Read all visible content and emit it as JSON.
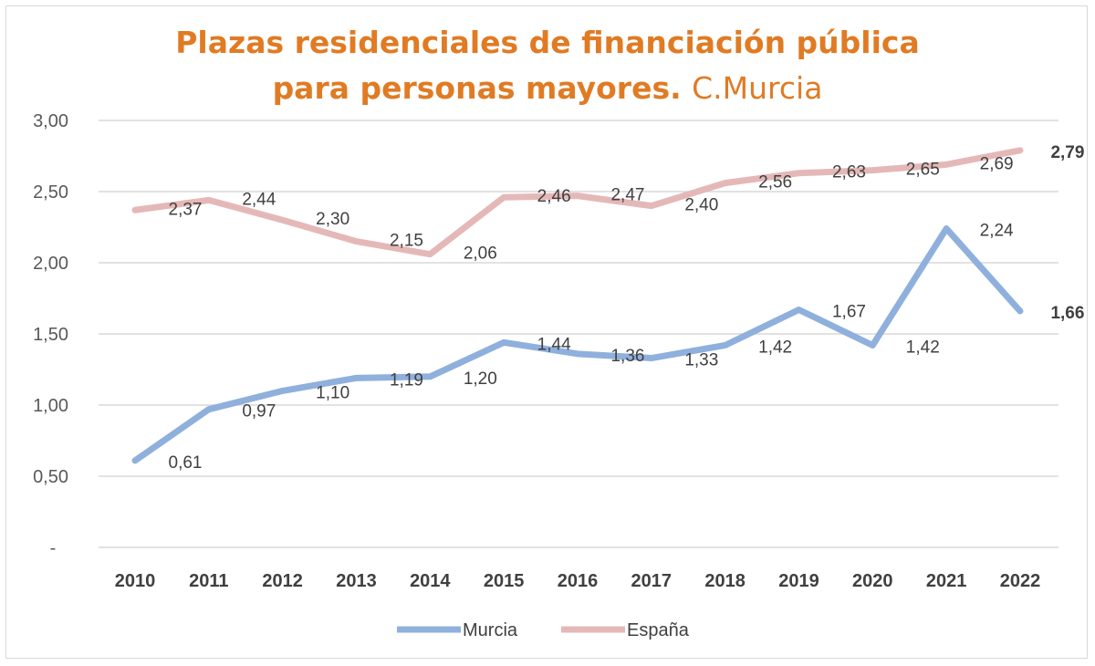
{
  "chart_data": {
    "type": "line",
    "title_line1": "Plazas residenciales de financiación pública",
    "title_line2": "para personas mayores.",
    "subtitle": "C.Murcia",
    "xlabel": "",
    "ylabel": "",
    "x": [
      "2010",
      "2011",
      "2012",
      "2013",
      "2014",
      "2015",
      "2016",
      "2017",
      "2018",
      "2019",
      "2020",
      "2021",
      "2022"
    ],
    "yticks": [
      "-",
      "0,50",
      "1,00",
      "1,50",
      "2,00",
      "2,50",
      "3,00"
    ],
    "ylim": [
      0,
      3
    ],
    "grid": true,
    "legend": "bottom",
    "series": [
      {
        "name": "Murcia",
        "color": "#8FB0DC",
        "values": [
          0.61,
          0.97,
          1.1,
          1.19,
          1.2,
          1.44,
          1.36,
          1.33,
          1.42,
          1.67,
          1.42,
          2.24,
          1.66
        ],
        "labels": [
          "0,61",
          "0,97",
          "1,10",
          "1,19",
          "1,20",
          "1,44",
          "1,36",
          "1,33",
          "1,42",
          "1,67",
          "1,42",
          "2,24",
          "1,66"
        ]
      },
      {
        "name": "España",
        "color": "#E5B8B8",
        "values": [
          2.37,
          2.44,
          2.3,
          2.15,
          2.06,
          2.46,
          2.47,
          2.4,
          2.56,
          2.63,
          2.65,
          2.69,
          2.79
        ],
        "labels": [
          "2,37",
          "2,44",
          "2,30",
          "2,15",
          "2,06",
          "2,46",
          "2,47",
          "2,40",
          "2,56",
          "2,63",
          "2,65",
          "2,69",
          "2,79"
        ]
      }
    ]
  }
}
